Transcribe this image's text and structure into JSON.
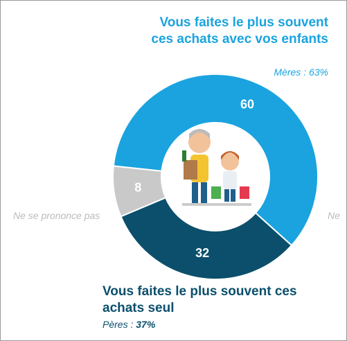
{
  "chart_data": {
    "type": "donut",
    "categories": [
      "Vous faites le plus souvent ces achats avec vos enfants",
      "Vous faites le plus souvent ces achats seul",
      "Ne se prononce pas"
    ],
    "values": [
      60,
      32,
      8
    ],
    "colors": [
      "#1aa3df",
      "#0b4f6c",
      "#c9c9c9"
    ],
    "annotations": {
      "mothers": "Mères : 63%",
      "fathers_label": "Pères :",
      "fathers_value": "37%",
      "cut_label": "Ne"
    }
  }
}
